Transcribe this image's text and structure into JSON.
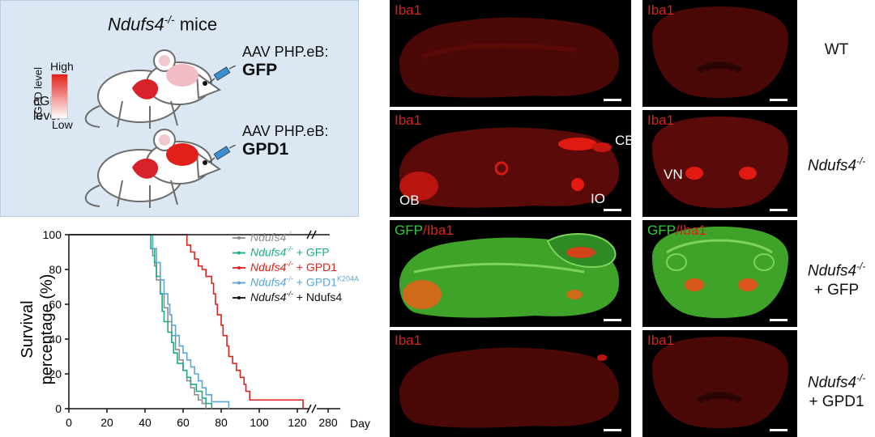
{
  "schematic": {
    "title_gene": "Ndufs4",
    "title_sup": "-/-",
    "title_rest": " mice",
    "gradient_high": "High",
    "gradient_low": "Low",
    "gradient_axis": "cGPD level",
    "injection_1_line1": "AAV PHP.eB:",
    "injection_1_line2": "GFP",
    "injection_2_line1": "AAV PHP.eB:",
    "injection_2_line2": "GPD1"
  },
  "chart_data": {
    "type": "line",
    "ylabel_line1": "Survival",
    "ylabel_line2": "percentage (%)",
    "xunit": "Day",
    "xticks": [
      "0",
      "20",
      "40",
      "60",
      "80",
      "100",
      "120",
      "280"
    ],
    "yticks": [
      "0",
      "20",
      "40",
      "60",
      "80",
      "100"
    ],
    "ylim": [
      0,
      100
    ],
    "series": [
      {
        "name": "Ndufs4-/-",
        "color": "#8c8c8c",
        "points": [
          [
            0,
            100
          ],
          [
            43,
            100
          ],
          [
            44,
            88
          ],
          [
            45,
            82
          ],
          [
            46,
            74
          ],
          [
            48,
            66
          ],
          [
            50,
            58
          ],
          [
            52,
            50
          ],
          [
            54,
            42
          ],
          [
            56,
            34
          ],
          [
            58,
            28
          ],
          [
            60,
            22
          ],
          [
            62,
            16
          ],
          [
            64,
            12
          ],
          [
            66,
            8
          ],
          [
            68,
            5
          ],
          [
            70,
            3
          ],
          [
            72,
            0
          ]
        ]
      },
      {
        "name": "Ndufs4-/- + GFP",
        "color": "#1dab86",
        "points": [
          [
            0,
            100
          ],
          [
            42,
            100
          ],
          [
            43,
            92
          ],
          [
            45,
            84
          ],
          [
            46,
            76
          ],
          [
            48,
            66
          ],
          [
            49,
            56
          ],
          [
            50,
            50
          ],
          [
            52,
            44
          ],
          [
            54,
            38
          ],
          [
            55,
            32
          ],
          [
            57,
            26
          ],
          [
            60,
            22
          ],
          [
            62,
            18
          ],
          [
            64,
            14
          ],
          [
            67,
            10
          ],
          [
            70,
            6
          ],
          [
            72,
            3
          ],
          [
            75,
            0
          ]
        ]
      },
      {
        "name": "Ndufs4-/- + GPD1",
        "color": "#e0201a",
        "points": [
          [
            0,
            100
          ],
          [
            60,
            100
          ],
          [
            62,
            94
          ],
          [
            64,
            90
          ],
          [
            66,
            86
          ],
          [
            68,
            82
          ],
          [
            70,
            80
          ],
          [
            72,
            76
          ],
          [
            75,
            72
          ],
          [
            76,
            66
          ],
          [
            77,
            60
          ],
          [
            78,
            54
          ],
          [
            80,
            48
          ],
          [
            81,
            42
          ],
          [
            83,
            36
          ],
          [
            84,
            30
          ],
          [
            86,
            26
          ],
          [
            88,
            22
          ],
          [
            90,
            18
          ],
          [
            92,
            14
          ],
          [
            93,
            10
          ],
          [
            95,
            5
          ],
          [
            122,
            5
          ],
          [
            123,
            0
          ]
        ]
      },
      {
        "name": "Ndufs4-/- + GPD1",
        "name_sup": "K204A",
        "color": "#5aa6d6",
        "points": [
          [
            0,
            100
          ],
          [
            42,
            100
          ],
          [
            44,
            92
          ],
          [
            46,
            84
          ],
          [
            48,
            74
          ],
          [
            50,
            66
          ],
          [
            52,
            60
          ],
          [
            53,
            54
          ],
          [
            54,
            48
          ],
          [
            56,
            42
          ],
          [
            58,
            36
          ],
          [
            60,
            32
          ],
          [
            62,
            28
          ],
          [
            64,
            24
          ],
          [
            66,
            20
          ],
          [
            68,
            16
          ],
          [
            70,
            12
          ],
          [
            72,
            8
          ],
          [
            75,
            4
          ],
          [
            84,
            0
          ]
        ]
      },
      {
        "name": "Ndufs4-/- + Ndufs4",
        "color": "#111111",
        "points": [
          [
            0,
            100
          ],
          [
            122,
            100
          ],
          [
            132,
            100
          ],
          [
            137,
            100
          ]
        ]
      }
    ],
    "legend": [
      {
        "gene": "Ndufs4",
        "sup": "-/-",
        "suffix": "",
        "suffix_sup": "",
        "color": "#8c8c8c"
      },
      {
        "gene": "Ndufs4",
        "sup": "-/-",
        "suffix": " + GFP",
        "suffix_sup": "",
        "color": "#1dab86"
      },
      {
        "gene": "Ndufs4",
        "sup": "-/-",
        "suffix": " + GPD1",
        "suffix_sup": "",
        "color": "#e0201a"
      },
      {
        "gene": "Ndufs4",
        "sup": "-/-",
        "suffix": " + GPD1",
        "suffix_sup": "K204A",
        "color": "#5aa6d6"
      },
      {
        "gene": "Ndufs4",
        "sup": "-/-",
        "suffix": " + Ndufs4",
        "suffix_sup": "",
        "color": "#111111"
      }
    ],
    "legend_position": "top-right"
  },
  "panels": {
    "label_iba1": "Iba1",
    "label_gfp": "GFP",
    "label_slash": "/",
    "region_cb": "CB",
    "region_ob": "OB",
    "region_io": "IO",
    "region_vn": "VN"
  },
  "row_labels": {
    "wt": "WT",
    "gene": "Ndufs4",
    "sup": "-/-",
    "gfp": "+ GFP",
    "gpd1": "+ GPD1"
  },
  "colors": {
    "iba1": "#e0201a",
    "gfp": "#35c83a",
    "schematic_bg": "#dbe7f2"
  }
}
